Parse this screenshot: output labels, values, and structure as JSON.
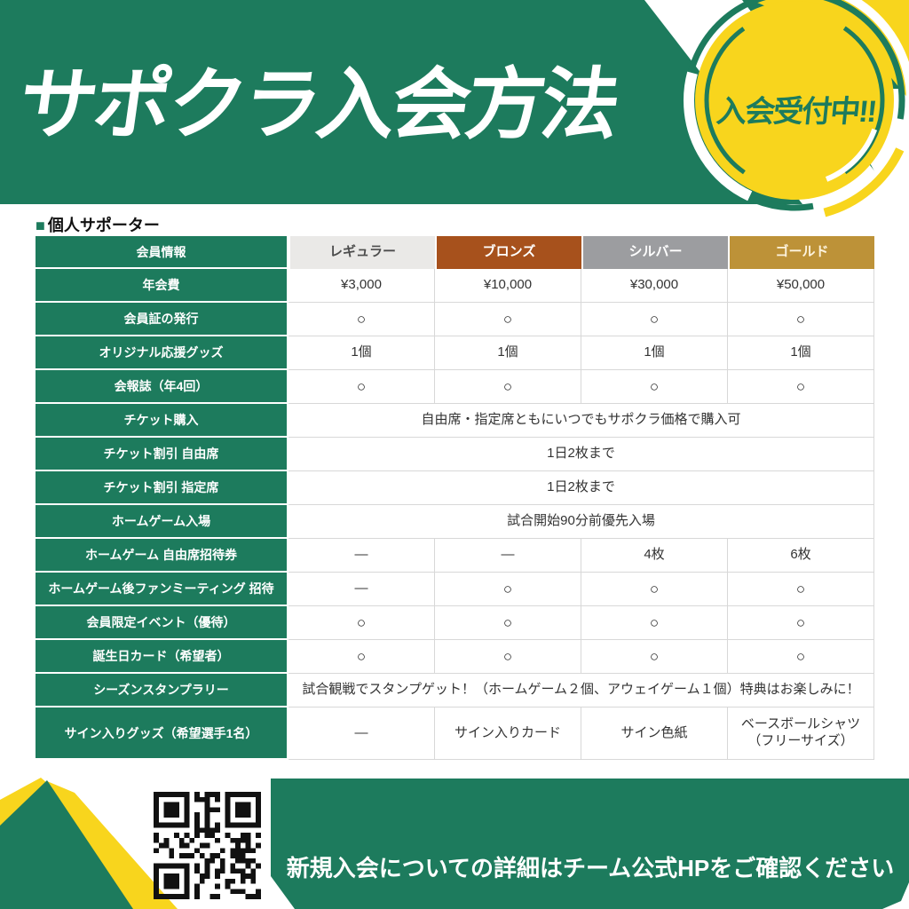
{
  "header": {
    "title": "サポクラ入会方法",
    "badge_label": "入会受付中!!"
  },
  "section": {
    "bullet": "■",
    "title": "個人サポーター"
  },
  "table": {
    "corner_label": "会員情報",
    "plans": [
      {
        "label": "レギュラー",
        "bg": "#eae9e7",
        "text_color": "#4d4d4d"
      },
      {
        "label": "ブロンズ",
        "bg": "#a7511c",
        "text_color": "#ffffff"
      },
      {
        "label": "シルバー",
        "bg": "#9c9da0",
        "text_color": "#ffffff"
      },
      {
        "label": "ゴールド",
        "bg": "#bd9238",
        "text_color": "#fdf3dd"
      }
    ],
    "rows": [
      {
        "label": "年会費",
        "cells": [
          "¥3,000",
          "¥10,000",
          "¥30,000",
          "¥50,000"
        ]
      },
      {
        "label": "会員証の発行",
        "cells": [
          "○",
          "○",
          "○",
          "○"
        ]
      },
      {
        "label": "オリジナル応援グッズ",
        "cells": [
          "1個",
          "1個",
          "1個",
          "1個"
        ]
      },
      {
        "label": "会報誌（年4回）",
        "cells": [
          "○",
          "○",
          "○",
          "○"
        ]
      },
      {
        "label": "チケット購入",
        "span": "自由席・指定席ともにいつでもサポクラ価格で購入可"
      },
      {
        "label": "チケット割引 自由席",
        "span": "1日2枚まで"
      },
      {
        "label": "チケット割引 指定席",
        "span": "1日2枚まで"
      },
      {
        "label": "ホームゲーム入場",
        "span": "試合開始90分前優先入場"
      },
      {
        "label": "ホームゲーム 自由席招待券",
        "cells": [
          "—",
          "—",
          "4枚",
          "6枚"
        ]
      },
      {
        "label": "ホームゲーム後ファンミーティング 招待",
        "cells": [
          "—",
          "○",
          "○",
          "○"
        ]
      },
      {
        "label": "会員限定イベント（優待）",
        "cells": [
          "○",
          "○",
          "○",
          "○"
        ]
      },
      {
        "label": "誕生日カード（希望者）",
        "cells": [
          "○",
          "○",
          "○",
          "○"
        ]
      },
      {
        "label": "シーズンスタンプラリー",
        "span": "試合観戦でスタンプゲット！（ホームゲーム２個、アウェイゲーム１個）特典はお楽しみに！"
      },
      {
        "label": "サイン入りグッズ（希望選手1名）",
        "cells": [
          "—",
          "サイン入りカード",
          "サイン色紙",
          "ベースボールシャツ（フリーサイズ）"
        ]
      }
    ]
  },
  "footer": {
    "note": "新規入会についての詳細はチーム公式HPをご確認ください",
    "qr_icon": "qr-code"
  },
  "colors": {
    "green": "#1d7b5d",
    "yellow": "#f8d51d",
    "bronze": "#a7511c",
    "silver": "#9c9da0",
    "gold": "#bd9238"
  }
}
